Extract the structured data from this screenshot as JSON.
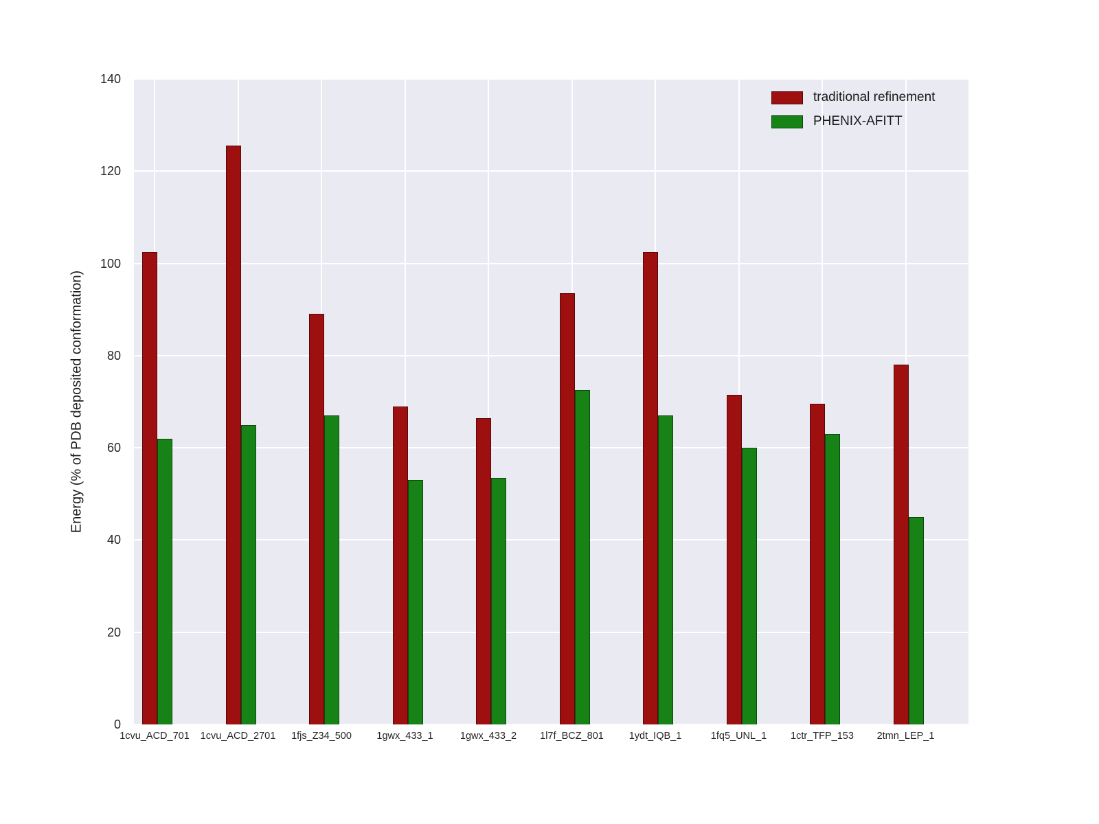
{
  "chart_data": {
    "type": "bar",
    "title": "",
    "xlabel": "",
    "ylabel": "Energy (% of PDB deposited conformation)",
    "ylim": [
      0,
      140
    ],
    "yticks": [
      0,
      20,
      40,
      60,
      80,
      100,
      120,
      140
    ],
    "grid": true,
    "plot_background": "#eaeaf2",
    "grid_color": "#ffffff",
    "legend_position": "upper right",
    "categories": [
      "1cvu_ACD_701",
      "1cvu_ACD_2701",
      "1fjs_Z34_500",
      "1gwx_433_1",
      "1gwx_433_2",
      "1l7f_BCZ_801",
      "1ydt_IQB_1",
      "1fq5_UNL_1",
      "1ctr_TFP_153",
      "2tmn_LEP_1"
    ],
    "series": [
      {
        "name": "traditional refinement",
        "color": "#9e1010",
        "values": [
          102.5,
          125.5,
          89,
          69,
          66.5,
          93.5,
          102.5,
          71.5,
          69.5,
          78
        ]
      },
      {
        "name": "PHENIX-AFITT",
        "color": "#178317",
        "values": [
          62,
          65,
          67,
          53,
          53.5,
          72.5,
          67,
          60,
          63,
          45
        ]
      }
    ]
  }
}
